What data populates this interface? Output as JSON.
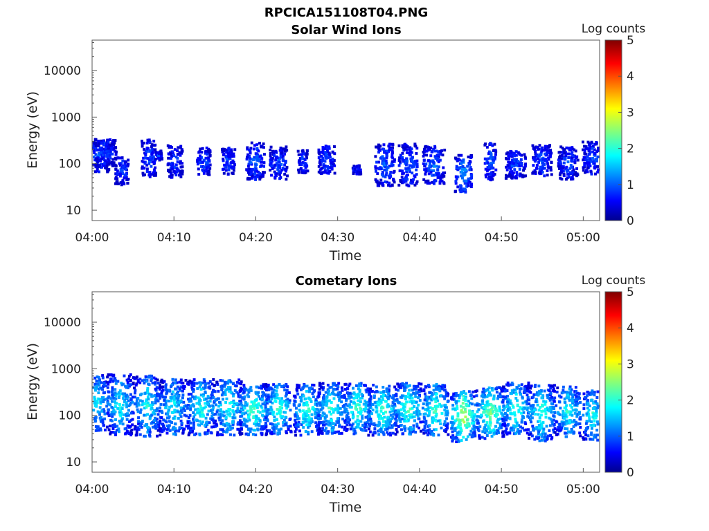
{
  "figure_title": "RPCICA151108T04.PNG",
  "colorbar": {
    "label": "Log counts",
    "ticks": [
      "0",
      "1",
      "2",
      "3",
      "4",
      "5"
    ],
    "range": [
      0,
      5
    ],
    "colormap": "jet"
  },
  "chart_data": [
    {
      "type": "heatmap",
      "title": "Solar Wind Ions",
      "xlabel": "Time",
      "ylabel": "Energy (eV)",
      "yscale": "log",
      "ylim": [
        6,
        45000
      ],
      "xlim_minutes": [
        0,
        62
      ],
      "x_ticks": [
        "04:00",
        "04:10",
        "04:20",
        "04:30",
        "04:40",
        "04:50",
        "05:00"
      ],
      "y_ticks": [
        "10",
        "100",
        "1000",
        "10000"
      ],
      "clusters": [
        {
          "t": 0.7,
          "e": 160,
          "w": 1.2,
          "spread": 0.35,
          "level": 0.9
        },
        {
          "t": 1.5,
          "e": 180,
          "w": 1.3,
          "spread": 0.3,
          "level": 0.9
        },
        {
          "t": 3.5,
          "e": 75,
          "w": 0.8,
          "spread": 0.3,
          "level": 0.9
        },
        {
          "t": 6.8,
          "e": 140,
          "w": 0.9,
          "spread": 0.4,
          "level": 0.9
        },
        {
          "t": 8.0,
          "e": 160,
          "w": 0.4,
          "spread": 0.1,
          "level": 0.8
        },
        {
          "t": 10.0,
          "e": 120,
          "w": 0.9,
          "spread": 0.35,
          "level": 0.9
        },
        {
          "t": 13.5,
          "e": 120,
          "w": 0.8,
          "spread": 0.3,
          "level": 0.9
        },
        {
          "t": 16.5,
          "e": 120,
          "w": 0.8,
          "spread": 0.3,
          "level": 0.9
        },
        {
          "t": 19.8,
          "e": 120,
          "w": 1.1,
          "spread": 0.4,
          "level": 1.0
        },
        {
          "t": 22.6,
          "e": 110,
          "w": 1.1,
          "spread": 0.35,
          "level": 0.9
        },
        {
          "t": 25.6,
          "e": 120,
          "w": 0.6,
          "spread": 0.25,
          "level": 0.8
        },
        {
          "t": 28.5,
          "e": 130,
          "w": 1.0,
          "spread": 0.3,
          "level": 0.9
        },
        {
          "t": 32.2,
          "e": 80,
          "w": 0.5,
          "spread": 0.1,
          "level": 0.8
        },
        {
          "t": 35.6,
          "e": 100,
          "w": 1.2,
          "spread": 0.45,
          "level": 1.0
        },
        {
          "t": 38.5,
          "e": 100,
          "w": 1.2,
          "spread": 0.45,
          "level": 1.0
        },
        {
          "t": 41.6,
          "e": 100,
          "w": 1.3,
          "spread": 0.4,
          "level": 1.0
        },
        {
          "t": 45.2,
          "e": 65,
          "w": 1.0,
          "spread": 0.4,
          "level": 1.25
        },
        {
          "t": 48.5,
          "e": 120,
          "w": 0.7,
          "spread": 0.4,
          "level": 1.0
        },
        {
          "t": 51.6,
          "e": 100,
          "w": 1.2,
          "spread": 0.3,
          "level": 0.9
        },
        {
          "t": 54.8,
          "e": 120,
          "w": 1.2,
          "spread": 0.35,
          "level": 0.9
        },
        {
          "t": 58.0,
          "e": 110,
          "w": 1.2,
          "spread": 0.35,
          "level": 0.9
        },
        {
          "t": 61.0,
          "e": 140,
          "w": 1.2,
          "spread": 0.35,
          "level": 0.9
        }
      ]
    },
    {
      "type": "heatmap",
      "title": "Cometary Ions",
      "xlabel": "Time",
      "ylabel": "Energy (eV)",
      "yscale": "log",
      "ylim": [
        6,
        45000
      ],
      "xlim_minutes": [
        0,
        62
      ],
      "x_ticks": [
        "04:00",
        "04:10",
        "04:20",
        "04:30",
        "04:40",
        "04:50",
        "05:00"
      ],
      "y_ticks": [
        "10",
        "100",
        "1000",
        "10000"
      ],
      "clusters": [
        {
          "t": 0.5,
          "e": 200,
          "w": 1.4,
          "spread": 0.6,
          "level": 1.6
        },
        {
          "t": 3.3,
          "e": 180,
          "w": 1.6,
          "spread": 0.65,
          "level": 1.7
        },
        {
          "t": 6.6,
          "e": 170,
          "w": 1.6,
          "spread": 0.65,
          "level": 1.7
        },
        {
          "t": 9.8,
          "e": 160,
          "w": 1.6,
          "spread": 0.6,
          "level": 1.7
        },
        {
          "t": 13.2,
          "e": 160,
          "w": 1.7,
          "spread": 0.6,
          "level": 1.8
        },
        {
          "t": 16.5,
          "e": 160,
          "w": 1.6,
          "spread": 0.6,
          "level": 1.8
        },
        {
          "t": 19.6,
          "e": 140,
          "w": 1.7,
          "spread": 0.55,
          "level": 2.0
        },
        {
          "t": 22.6,
          "e": 150,
          "w": 1.6,
          "spread": 0.55,
          "level": 1.9
        },
        {
          "t": 26.1,
          "e": 140,
          "w": 1.6,
          "spread": 0.55,
          "level": 1.9
        },
        {
          "t": 29.1,
          "e": 150,
          "w": 1.6,
          "spread": 0.55,
          "level": 1.9
        },
        {
          "t": 32.3,
          "e": 150,
          "w": 1.6,
          "spread": 0.55,
          "level": 1.9
        },
        {
          "t": 35.3,
          "e": 140,
          "w": 1.7,
          "spread": 0.55,
          "level": 2.0
        },
        {
          "t": 38.5,
          "e": 150,
          "w": 1.6,
          "spread": 0.55,
          "level": 2.0
        },
        {
          "t": 41.8,
          "e": 140,
          "w": 1.6,
          "spread": 0.55,
          "level": 2.0
        },
        {
          "t": 45.2,
          "e": 100,
          "w": 1.5,
          "spread": 0.55,
          "level": 2.5
        },
        {
          "t": 48.5,
          "e": 120,
          "w": 1.7,
          "spread": 0.55,
          "level": 2.2
        },
        {
          "t": 51.6,
          "e": 150,
          "w": 1.6,
          "spread": 0.55,
          "level": 1.9
        },
        {
          "t": 54.8,
          "e": 120,
          "w": 1.6,
          "spread": 0.6,
          "level": 1.9
        },
        {
          "t": 58.0,
          "e": 130,
          "w": 1.5,
          "spread": 0.55,
          "level": 1.8
        },
        {
          "t": 61.0,
          "e": 110,
          "w": 1.2,
          "spread": 0.55,
          "level": 1.8
        }
      ]
    }
  ]
}
